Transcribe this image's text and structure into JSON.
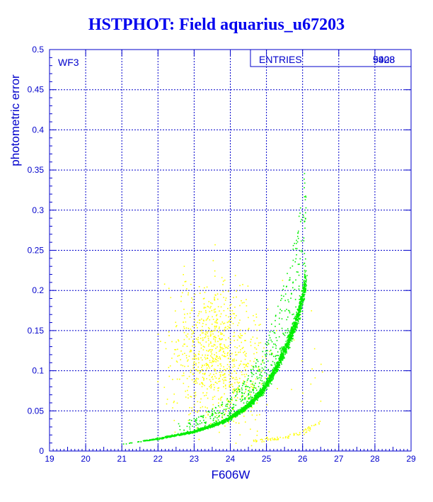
{
  "chart_data": {
    "type": "scatter",
    "title": "HSTPHOT: Field aquarius_u67203",
    "xlabel": "F606W",
    "ylabel": "photometric error",
    "xlim": [
      19,
      29
    ],
    "ylim": [
      0,
      0.5
    ],
    "x_ticks": [
      "19",
      "20",
      "21",
      "22",
      "23",
      "24",
      "25",
      "26",
      "27",
      "28",
      "29"
    ],
    "y_ticks": [
      "0",
      "0.05",
      "0.1",
      "0.15",
      "0.2",
      "0.25",
      "0.3",
      "0.35",
      "0.4",
      "0.45",
      "0.5"
    ],
    "grid": true,
    "panel_label": "WF3",
    "legend": {
      "label": "ENTRIES",
      "values": [
        "5408",
        "9928"
      ],
      "placement": "top-right"
    },
    "series": [
      {
        "color": "#00ee00",
        "trend_points": [
          [
            21.0,
            0.008
          ],
          [
            22.1,
            0.016
          ],
          [
            23.0,
            0.024
          ],
          [
            23.8,
            0.036
          ],
          [
            24.4,
            0.052
          ],
          [
            24.9,
            0.075
          ],
          [
            25.3,
            0.105
          ],
          [
            25.6,
            0.135
          ],
          [
            25.85,
            0.165
          ],
          [
            26.0,
            0.19
          ],
          [
            26.1,
            0.215
          ]
        ]
      },
      {
        "color": "#ffff00",
        "clouds": [
          {
            "x_center": 23.8,
            "y_center": 0.095,
            "x_spread": 0.6,
            "y_spread": 0.035
          },
          {
            "x_center": 23.5,
            "y_center": 0.14,
            "x_spread": 0.6,
            "y_spread": 0.04
          }
        ],
        "sequence_points": [
          [
            24.6,
            0.012
          ],
          [
            25.3,
            0.016
          ],
          [
            26.0,
            0.023
          ],
          [
            26.5,
            0.037
          ]
        ]
      }
    ]
  }
}
